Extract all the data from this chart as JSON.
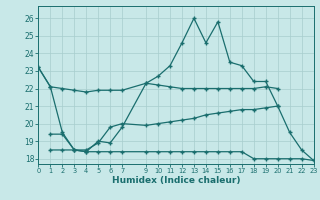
{
  "xlabel": "Humidex (Indice chaleur)",
  "bg_color": "#c8e8e8",
  "grid_color": "#a8cece",
  "line_color": "#1a6e6e",
  "xlim": [
    0,
    23
  ],
  "ylim": [
    17.7,
    26.7
  ],
  "yticks": [
    18,
    19,
    20,
    21,
    22,
    23,
    24,
    25,
    26
  ],
  "xticks": [
    0,
    1,
    2,
    3,
    4,
    5,
    6,
    7,
    9,
    10,
    11,
    12,
    13,
    14,
    15,
    16,
    17,
    18,
    19,
    20,
    21,
    22,
    23
  ],
  "line_spike_x": [
    0,
    1,
    2,
    3,
    4,
    5,
    6,
    7,
    9,
    10,
    11,
    12,
    13,
    14,
    15,
    16,
    17,
    18,
    19,
    20,
    21,
    22,
    23
  ],
  "line_spike_y": [
    23.2,
    22.1,
    19.5,
    18.5,
    18.4,
    19.0,
    18.9,
    19.8,
    22.3,
    22.7,
    23.3,
    24.6,
    26.0,
    24.6,
    25.8,
    23.5,
    23.3,
    22.4,
    22.4,
    21.0,
    19.5,
    18.5,
    17.9
  ],
  "line_top_x": [
    0,
    1,
    2,
    3,
    4,
    5,
    6,
    7,
    9,
    10,
    11,
    12,
    13,
    14,
    15,
    16,
    17,
    18,
    19,
    20
  ],
  "line_top_y": [
    23.2,
    22.1,
    22.0,
    21.9,
    21.8,
    21.9,
    21.9,
    21.9,
    22.3,
    22.2,
    22.1,
    22.0,
    22.0,
    22.0,
    22.0,
    22.0,
    22.0,
    22.0,
    22.1,
    22.0
  ],
  "line_mid_x": [
    1,
    2,
    3,
    4,
    5,
    6,
    7,
    9,
    10,
    11,
    12,
    13,
    14,
    15,
    16,
    17,
    18,
    19,
    20
  ],
  "line_mid_y": [
    19.4,
    19.4,
    18.5,
    18.5,
    18.9,
    19.8,
    20.0,
    19.9,
    20.0,
    20.1,
    20.2,
    20.3,
    20.5,
    20.6,
    20.7,
    20.8,
    20.8,
    20.9,
    21.0
  ],
  "line_bot_x": [
    1,
    2,
    3,
    4,
    5,
    6,
    7,
    9,
    10,
    11,
    12,
    13,
    14,
    15,
    16,
    17,
    18,
    19,
    20,
    21,
    22,
    23
  ],
  "line_bot_y": [
    18.5,
    18.5,
    18.5,
    18.4,
    18.4,
    18.4,
    18.4,
    18.4,
    18.4,
    18.4,
    18.4,
    18.4,
    18.4,
    18.4,
    18.4,
    18.4,
    18.0,
    18.0,
    18.0,
    18.0,
    18.0,
    17.9
  ]
}
